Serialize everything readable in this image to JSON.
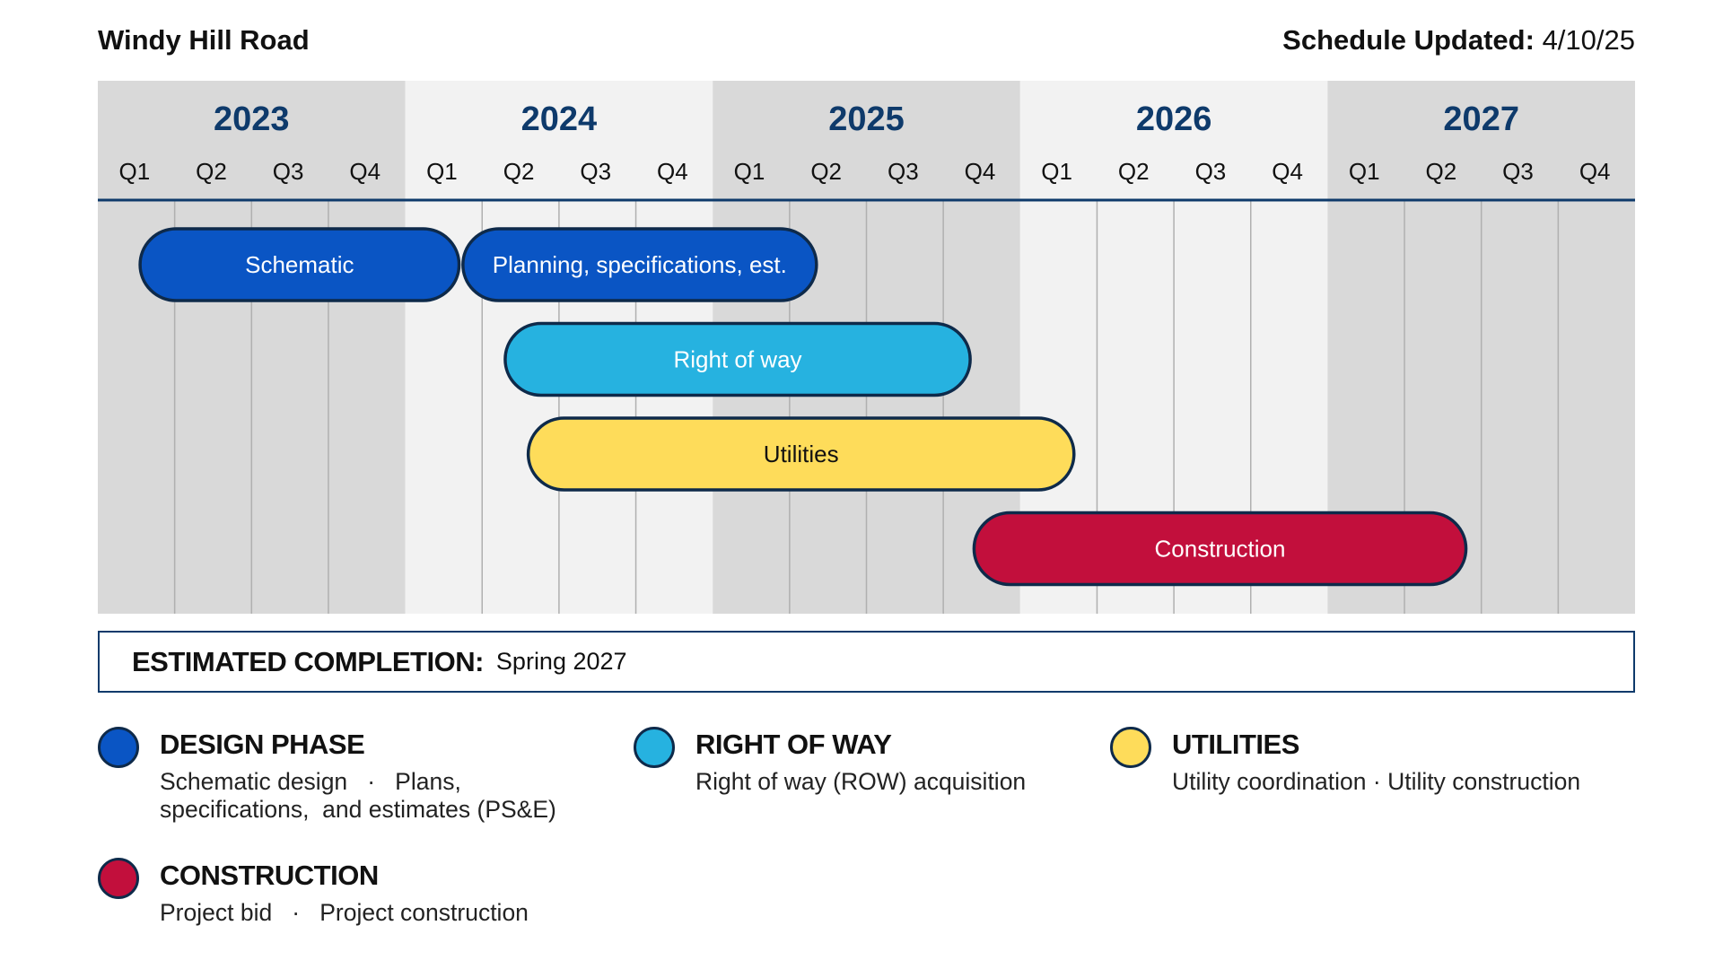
{
  "header": {
    "title": "Windy Hill Road",
    "updated_label": "Schedule Updated:",
    "updated_value": "4/10/25"
  },
  "colors": {
    "band_dark": "#d9d9d9",
    "band_light": "#f2f2f2",
    "axis_line": "#0e3a6b",
    "grid": "#b0b0b0",
    "bar_border": "#0e2a4a",
    "design": "#0a55c4",
    "row": "#26b2e0",
    "utilities": "#fedc5a",
    "construction": "#c20f3c"
  },
  "chart_data": {
    "type": "gantt",
    "title": "Windy Hill Road",
    "years": [
      "2023",
      "2024",
      "2025",
      "2026",
      "2027"
    ],
    "quarters": [
      "Q1",
      "Q2",
      "Q3",
      "Q4"
    ],
    "time_unit": "quarter index (0 = start of 2023 Q1, 20 = end of 2027 Q4)",
    "xlim": [
      0,
      20
    ],
    "tasks": [
      {
        "label": "Schematic",
        "start": 0.55,
        "end": 4.7,
        "row": 0,
        "color_key": "design",
        "text_color": "#ffffff"
      },
      {
        "label": "Planning, specifications, est.",
        "start": 4.75,
        "end": 9.35,
        "row": 0,
        "color_key": "design",
        "text_color": "#ffffff"
      },
      {
        "label": "Right of way",
        "start": 5.3,
        "end": 11.35,
        "row": 1,
        "color_key": "row",
        "text_color": "#ffffff"
      },
      {
        "label": "Utilities",
        "start": 5.6,
        "end": 12.7,
        "row": 2,
        "color_key": "utilities",
        "text_color": "#111111"
      },
      {
        "label": "Construction",
        "start": 11.4,
        "end": 17.8,
        "row": 3,
        "color_key": "construction",
        "text_color": "#ffffff"
      }
    ]
  },
  "completion": {
    "label": "ESTIMATED COMPLETION:",
    "value": "Spring 2027"
  },
  "legend": {
    "design": {
      "title": "DESIGN PHASE",
      "line1": "Schematic design   ·   Plans,",
      "line2": "specifications,  and estimates (PS&E)",
      "color": "#0a55c4"
    },
    "row": {
      "title": "RIGHT OF WAY",
      "line1": "Right of way (ROW) acquisition",
      "color": "#26b2e0"
    },
    "utilities": {
      "title": "UTILITIES",
      "line1": "Utility coordination · Utility construction",
      "color": "#fedc5a"
    },
    "construction": {
      "title": "CONSTRUCTION",
      "line1": "Project bid   ·   Project construction",
      "color": "#c20f3c"
    }
  }
}
